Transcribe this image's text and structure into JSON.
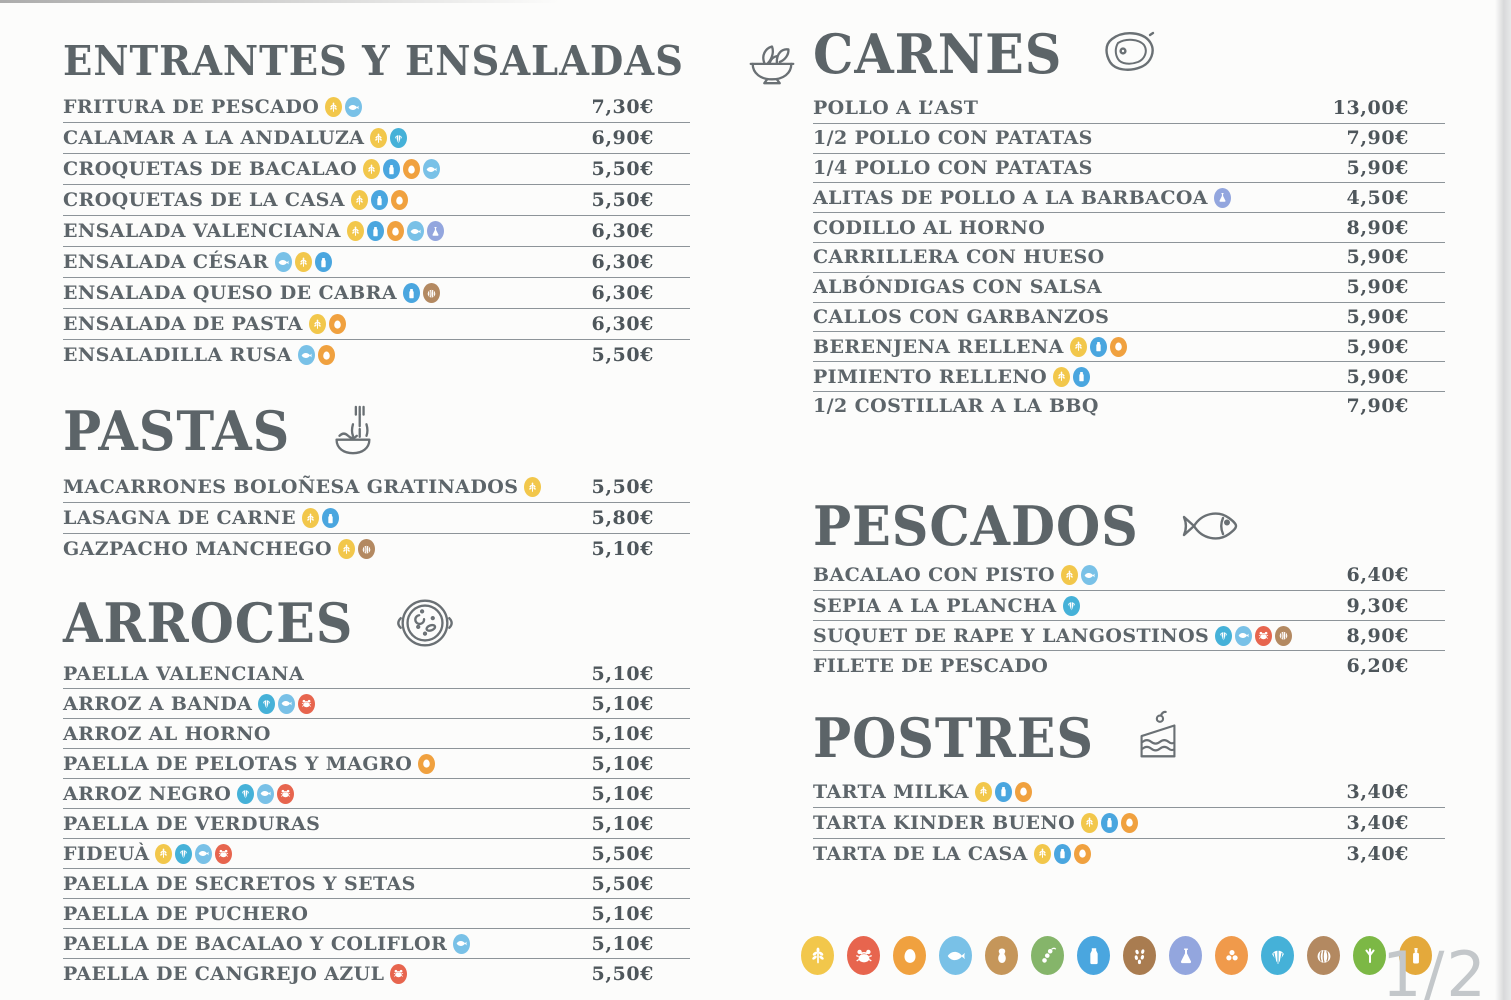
{
  "page": {
    "indicator": "1/2",
    "background": "#fcfcfb"
  },
  "colors": {
    "heading": "#5c6468",
    "item": "#5d656a",
    "price": "#4e565b",
    "divider": "#8d9499",
    "page_indicator": "#c3c7ca",
    "section_icon_stroke": "#6a7074"
  },
  "allergen_colors": {
    "gluten": "#f2c74b",
    "crustaceans": "#e7654e",
    "eggs": "#f0a13f",
    "fish": "#79c1e7",
    "peanuts": "#c5965a",
    "soy": "#85b56a",
    "milk": "#4aa6df",
    "sesame": "#a97c50",
    "sulphites": "#93a6de",
    "lupin": "#f09a4b",
    "molluscs": "#45b1d8",
    "nuts": "#b38961",
    "celery": "#7cb845",
    "mustard": "#e4a93b"
  },
  "allergen_labels": {
    "gluten": "gluten",
    "crustaceans": "crustaceos",
    "eggs": "huevos",
    "fish": "pescado",
    "peanuts": "cacahuetes",
    "soy": "soja",
    "milk": "lacteos",
    "sesame": "sesamo",
    "sulphites": "sulfitos",
    "lupin": "altramuces",
    "molluscs": "moluscos",
    "nuts": "frutos de cascara",
    "celery": "apio",
    "mustard": "mostaza"
  },
  "legend_order": [
    "gluten",
    "crustaceans",
    "eggs",
    "fish",
    "peanuts",
    "soy",
    "milk",
    "sesame",
    "sulphites",
    "lupin",
    "molluscs",
    "nuts",
    "celery",
    "mustard"
  ],
  "columns": [
    {
      "sections": [
        {
          "id": "entrantes",
          "title": "ENTRANTES Y ENSALADAS",
          "icon": "salad-bowl",
          "items": [
            {
              "name": "FRITURA DE PESCADO",
              "allergens": [
                "gluten",
                "fish"
              ],
              "price": "7,30€"
            },
            {
              "name": "CALAMAR A LA ANDALUZA",
              "allergens": [
                "gluten",
                "molluscs"
              ],
              "price": "6,90€"
            },
            {
              "name": "CROQUETAS DE BACALAO",
              "allergens": [
                "gluten",
                "milk",
                "eggs",
                "fish"
              ],
              "price": "5,50€"
            },
            {
              "name": "CROQUETAS DE LA CASA",
              "allergens": [
                "gluten",
                "milk",
                "eggs"
              ],
              "price": "5,50€"
            },
            {
              "name": "ENSALADA VALENCIANA",
              "allergens": [
                "gluten",
                "milk",
                "eggs",
                "fish",
                "sulphites"
              ],
              "price": "6,30€"
            },
            {
              "name": "ENSALADA CÉSAR",
              "allergens": [
                "fish",
                "gluten",
                "milk"
              ],
              "price": "6,30€"
            },
            {
              "name": "ENSALADA QUESO DE CABRA",
              "allergens": [
                "milk",
                "nuts"
              ],
              "price": "6,30€"
            },
            {
              "name": "ENSALADA DE PASTA",
              "allergens": [
                "gluten",
                "eggs"
              ],
              "price": "6,30€"
            },
            {
              "name": "ENSALADILLA RUSA",
              "allergens": [
                "fish",
                "eggs"
              ],
              "price": "5,50€"
            }
          ]
        },
        {
          "id": "pastas",
          "title": "PASTAS",
          "icon": "noodle-bowl",
          "items": [
            {
              "name": "MACARRONES BOLOÑESA GRATINADOS",
              "allergens": [
                "gluten"
              ],
              "price": "5,50€"
            },
            {
              "name": "LASAGNA DE CARNE",
              "allergens": [
                "gluten",
                "milk"
              ],
              "price": "5,80€"
            },
            {
              "name": "GAZPACHO MANCHEGO",
              "allergens": [
                "gluten",
                "nuts"
              ],
              "price": "5,10€"
            }
          ]
        },
        {
          "id": "arroces",
          "title": "ARROCES",
          "icon": "paella-pan",
          "items": [
            {
              "name": "PAELLA VALENCIANA",
              "allergens": [],
              "price": "5,10€"
            },
            {
              "name": "ARROZ A BANDA",
              "allergens": [
                "molluscs",
                "fish",
                "crustaceans"
              ],
              "price": "5,10€"
            },
            {
              "name": "ARROZ AL HORNO",
              "allergens": [],
              "price": "5,10€"
            },
            {
              "name": "PAELLA DE PELOTAS Y MAGRO",
              "allergens": [
                "eggs"
              ],
              "price": "5,10€"
            },
            {
              "name": "ARROZ NEGRO",
              "allergens": [
                "molluscs",
                "fish",
                "crustaceans"
              ],
              "price": "5,10€"
            },
            {
              "name": "PAELLA DE VERDURAS",
              "allergens": [],
              "price": "5,10€"
            },
            {
              "name": "FIDEUÀ",
              "allergens": [
                "gluten",
                "molluscs",
                "fish",
                "crustaceans"
              ],
              "price": "5,50€"
            },
            {
              "name": "PAELLA DE SECRETOS Y SETAS",
              "allergens": [],
              "price": "5,50€"
            },
            {
              "name": "PAELLA DE PUCHERO",
              "allergens": [],
              "price": "5,10€"
            },
            {
              "name": "PAELLA DE BACALAO Y COLIFLOR",
              "allergens": [
                "fish"
              ],
              "price": "5,10€"
            },
            {
              "name": "PAELLA DE CANGREJO AZUL",
              "allergens": [
                "crustaceans"
              ],
              "price": "5,50€"
            }
          ]
        }
      ]
    },
    {
      "sections": [
        {
          "id": "carnes",
          "title": "CARNES",
          "icon": "steak",
          "items": [
            {
              "name": "POLLO A L’AST",
              "allergens": [],
              "price": "13,00€"
            },
            {
              "name": "1/2 POLLO CON PATATAS",
              "allergens": [],
              "price": "7,90€"
            },
            {
              "name": "1/4 POLLO CON PATATAS",
              "allergens": [],
              "price": "5,90€"
            },
            {
              "name": "ALITAS DE POLLO A LA BARBACOA",
              "allergens": [
                "sulphites"
              ],
              "price": "4,50€"
            },
            {
              "name": "CODILLO AL HORNO",
              "allergens": [],
              "price": "8,90€"
            },
            {
              "name": "CARRILLERA CON HUESO",
              "allergens": [],
              "price": "5,90€"
            },
            {
              "name": "ALBÓNDIGAS CON SALSA",
              "allergens": [],
              "price": "5,90€"
            },
            {
              "name": "CALLOS CON GARBANZOS",
              "allergens": [],
              "price": "5,90€"
            },
            {
              "name": "BERENJENA RELLENA",
              "allergens": [
                "gluten",
                "milk",
                "eggs"
              ],
              "price": "5,90€"
            },
            {
              "name": "PIMIENTO RELLENO",
              "allergens": [
                "gluten",
                "milk"
              ],
              "price": "5,90€"
            },
            {
              "name": "1/2 COSTILLAR A LA BBQ",
              "allergens": [],
              "price": "7,90€"
            }
          ]
        },
        {
          "id": "pescados",
          "title": "PESCADOS",
          "icon": "fish",
          "items": [
            {
              "name": "BACALAO CON PISTO",
              "allergens": [
                "gluten",
                "fish"
              ],
              "price": "6,40€"
            },
            {
              "name": "SEPIA A LA PLANCHA",
              "allergens": [
                "molluscs"
              ],
              "price": "9,30€"
            },
            {
              "name": "SUQUET DE RAPE Y LANGOSTINOS",
              "allergens": [
                "molluscs",
                "fish",
                "crustaceans",
                "nuts"
              ],
              "price": "8,90€"
            },
            {
              "name": "FILETE DE PESCADO",
              "allergens": [],
              "price": "6,20€"
            }
          ]
        },
        {
          "id": "postres",
          "title": "POSTRES",
          "icon": "cake-slice",
          "items": [
            {
              "name": "TARTA MILKA",
              "allergens": [
                "gluten",
                "milk",
                "eggs"
              ],
              "price": "3,40€"
            },
            {
              "name": "TARTA KINDER BUENO",
              "allergens": [
                "gluten",
                "milk",
                "eggs"
              ],
              "price": "3,40€"
            },
            {
              "name": "TARTA DE LA CASA",
              "allergens": [
                "gluten",
                "milk",
                "eggs"
              ],
              "price": "3,40€"
            }
          ]
        }
      ]
    }
  ]
}
